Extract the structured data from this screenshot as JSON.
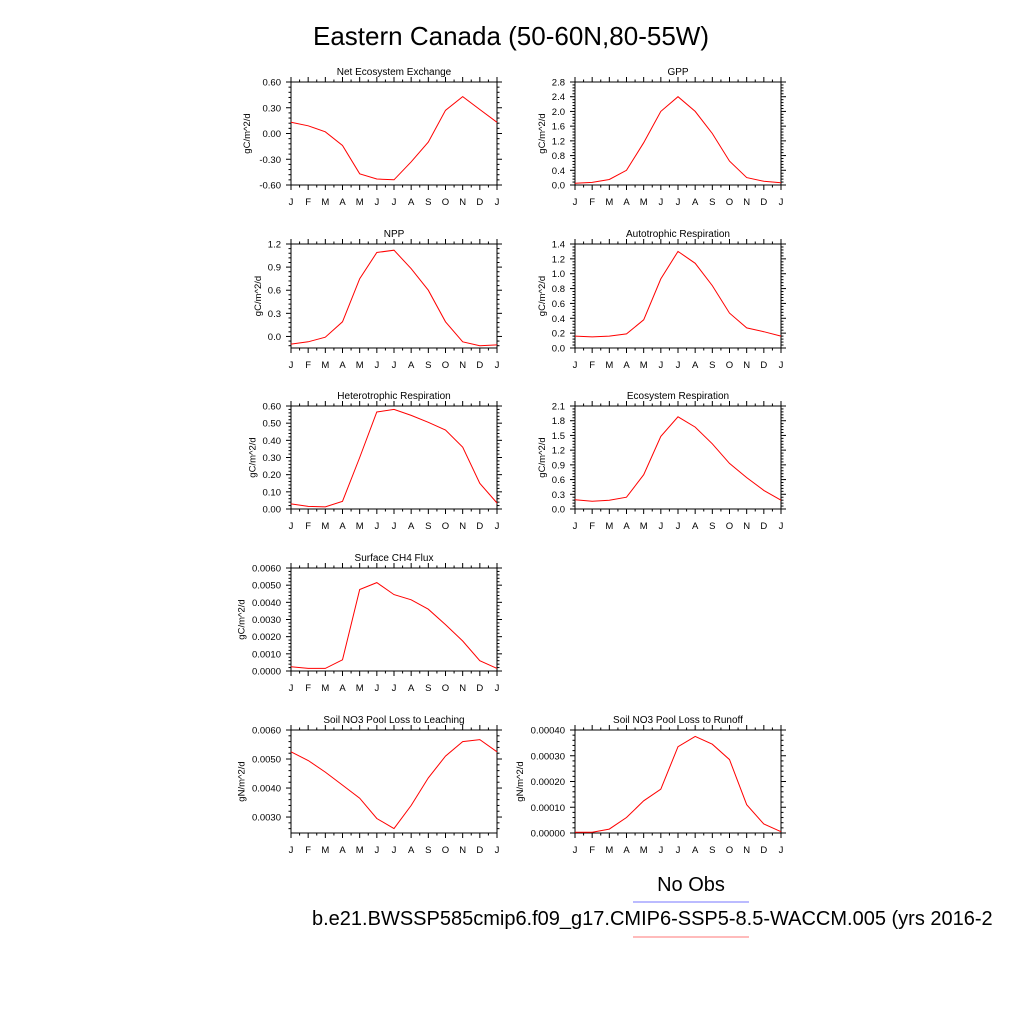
{
  "figure": {
    "title": "Eastern Canada (50-60N,80-55W)",
    "legend": {
      "no_obs_label": "No Obs",
      "no_obs_color": "#7777ff",
      "model_label": "b.e21.BWSSP585cmip6.f09_g17.CMIP6-SSP5-8.5-WACCM.005 (yrs 2016-2",
      "model_color": "#ff7777"
    },
    "line_color": "#ff0000"
  },
  "chart_data": [
    {
      "type": "line",
      "title": "Net Ecosystem Exchange",
      "ylabel": "gC/m^2/d",
      "categories": [
        "J",
        "F",
        "M",
        "A",
        "M",
        "J",
        "J",
        "A",
        "S",
        "O",
        "N",
        "D",
        "J"
      ],
      "ylim": [
        -0.6,
        0.6
      ],
      "yticks": [
        "0.60",
        "0.30",
        "0.00",
        "-0.30",
        "-0.60"
      ],
      "grid": false,
      "series": [
        {
          "values": [
            0.13,
            0.09,
            0.02,
            -0.14,
            -0.47,
            -0.53,
            -0.54,
            -0.33,
            -0.1,
            0.27,
            0.43,
            0.28,
            0.13
          ]
        }
      ]
    },
    {
      "type": "line",
      "title": "GPP",
      "ylabel": "gC/m^2/d",
      "categories": [
        "J",
        "F",
        "M",
        "A",
        "M",
        "J",
        "J",
        "A",
        "S",
        "O",
        "N",
        "D",
        "J"
      ],
      "ylim": [
        0.0,
        2.8
      ],
      "yticks": [
        "2.8",
        "2.4",
        "2.0",
        "1.6",
        "1.2",
        "0.8",
        "0.4",
        "0.0"
      ],
      "grid": false,
      "series": [
        {
          "values": [
            0.05,
            0.07,
            0.15,
            0.4,
            1.15,
            2.0,
            2.4,
            2.0,
            1.4,
            0.65,
            0.2,
            0.1,
            0.06
          ]
        }
      ]
    },
    {
      "type": "line",
      "title": "NPP",
      "ylabel": "gC/m^2/d",
      "categories": [
        "J",
        "F",
        "M",
        "A",
        "M",
        "J",
        "J",
        "A",
        "S",
        "O",
        "N",
        "D",
        "J"
      ],
      "ylim": [
        -0.15,
        1.2
      ],
      "yticks": [
        "1.2",
        "0.9",
        "0.6",
        "0.3",
        "0.0"
      ],
      "grid": false,
      "series": [
        {
          "values": [
            -0.1,
            -0.07,
            -0.01,
            0.19,
            0.75,
            1.09,
            1.12,
            0.88,
            0.6,
            0.19,
            -0.07,
            -0.12,
            -0.11
          ]
        }
      ]
    },
    {
      "type": "line",
      "title": "Autotrophic Respiration",
      "ylabel": "gC/m^2/d",
      "categories": [
        "J",
        "F",
        "M",
        "A",
        "M",
        "J",
        "J",
        "A",
        "S",
        "O",
        "N",
        "D",
        "J"
      ],
      "ylim": [
        0.0,
        1.4
      ],
      "yticks": [
        "1.4",
        "1.2",
        "1.0",
        "0.8",
        "0.6",
        "0.4",
        "0.2",
        "0.0"
      ],
      "grid": false,
      "series": [
        {
          "values": [
            0.16,
            0.15,
            0.16,
            0.19,
            0.38,
            0.93,
            1.3,
            1.14,
            0.84,
            0.47,
            0.27,
            0.22,
            0.16
          ]
        }
      ]
    },
    {
      "type": "line",
      "title": "Heterotrophic Respiration",
      "ylabel": "gC/m^2/d",
      "categories": [
        "J",
        "F",
        "M",
        "A",
        "M",
        "J",
        "J",
        "A",
        "S",
        "O",
        "N",
        "D",
        "J"
      ],
      "ylim": [
        0.0,
        0.6
      ],
      "yticks": [
        "0.60",
        "0.50",
        "0.40",
        "0.30",
        "0.20",
        "0.10",
        "0.00"
      ],
      "grid": false,
      "series": [
        {
          "values": [
            0.03,
            0.015,
            0.012,
            0.045,
            0.3,
            0.565,
            0.58,
            0.545,
            0.505,
            0.46,
            0.36,
            0.15,
            0.035
          ]
        }
      ]
    },
    {
      "type": "line",
      "title": "Ecosystem Respiration",
      "ylabel": "gC/m^2/d",
      "categories": [
        "J",
        "F",
        "M",
        "A",
        "M",
        "J",
        "J",
        "A",
        "S",
        "O",
        "N",
        "D",
        "J"
      ],
      "ylim": [
        0.0,
        2.1
      ],
      "yticks": [
        "2.1",
        "1.8",
        "1.5",
        "1.2",
        "0.9",
        "0.6",
        "0.3",
        "0.0"
      ],
      "grid": false,
      "series": [
        {
          "values": [
            0.19,
            0.16,
            0.18,
            0.24,
            0.7,
            1.48,
            1.88,
            1.67,
            1.33,
            0.93,
            0.64,
            0.38,
            0.18
          ]
        }
      ]
    },
    {
      "type": "line",
      "title": "Surface CH4 Flux",
      "ylabel": "gC/m^2/d",
      "categories": [
        "J",
        "F",
        "M",
        "A",
        "M",
        "J",
        "J",
        "A",
        "S",
        "O",
        "N",
        "D",
        "J"
      ],
      "ylim": [
        0.0,
        0.006
      ],
      "yticks": [
        "0.0060",
        "0.0050",
        "0.0040",
        "0.0030",
        "0.0020",
        "0.0010",
        "0.0000"
      ],
      "grid": false,
      "series": [
        {
          "values": [
            0.00025,
            0.00015,
            0.00015,
            0.00065,
            0.00475,
            0.00515,
            0.00445,
            0.00415,
            0.0036,
            0.0027,
            0.00175,
            0.0006,
            0.00015
          ]
        }
      ]
    },
    {
      "type": "line",
      "title": "Soil NO3 Pool Loss to Leaching",
      "ylabel": "gN/m^2/d",
      "categories": [
        "J",
        "F",
        "M",
        "A",
        "M",
        "J",
        "J",
        "A",
        "S",
        "O",
        "N",
        "D",
        "J"
      ],
      "ylim": [
        0.00245,
        0.006
      ],
      "yticks": [
        "0.0060",
        "0.0050",
        "0.0040",
        "0.0030"
      ],
      "grid": false,
      "series": [
        {
          "values": [
            0.00525,
            0.00495,
            0.00455,
            0.0041,
            0.00365,
            0.00295,
            0.0026,
            0.0034,
            0.00435,
            0.0051,
            0.0056,
            0.00567,
            0.00525
          ]
        }
      ]
    },
    {
      "type": "line",
      "title": "Soil NO3 Pool Loss to Runoff",
      "ylabel": "gN/m^2/d",
      "categories": [
        "J",
        "F",
        "M",
        "A",
        "M",
        "J",
        "J",
        "A",
        "S",
        "O",
        "N",
        "D",
        "J"
      ],
      "ylim": [
        0.0,
        0.0004
      ],
      "yticks": [
        "0.00040",
        "0.00030",
        "0.00020",
        "0.00010",
        "0.00000"
      ],
      "grid": false,
      "series": [
        {
          "values": [
            3e-06,
            3e-06,
            1.5e-05,
            6e-05,
            0.000125,
            0.00017,
            0.000335,
            0.000375,
            0.000345,
            0.000285,
            0.00011,
            3.5e-05,
            5e-06
          ]
        }
      ]
    }
  ]
}
